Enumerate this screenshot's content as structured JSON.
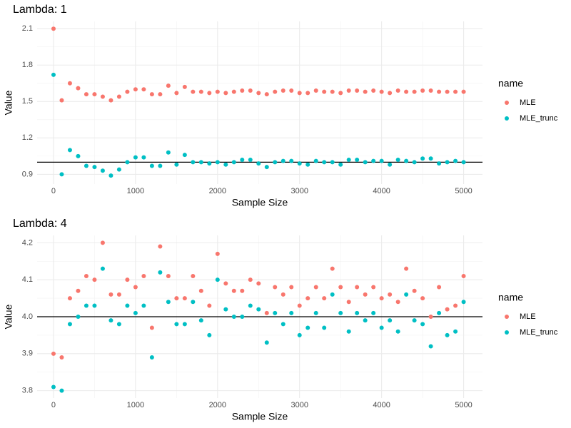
{
  "chart_data": [
    {
      "type": "scatter",
      "title": "Lambda:  1",
      "x_label": "Sample Size",
      "y_label": "Value",
      "legend_title": "name",
      "x": [
        0,
        100,
        200,
        300,
        400,
        500,
        600,
        700,
        800,
        900,
        1000,
        1100,
        1200,
        1300,
        1400,
        1500,
        1600,
        1700,
        1800,
        1900,
        2000,
        2100,
        2200,
        2300,
        2400,
        2500,
        2600,
        2700,
        2800,
        2900,
        3000,
        3100,
        3200,
        3300,
        3400,
        3500,
        3600,
        3700,
        3800,
        3900,
        4000,
        4100,
        4200,
        4300,
        4400,
        4500,
        4600,
        4700,
        4800,
        4900,
        5000
      ],
      "series": [
        {
          "name": "MLE",
          "color": "#F8766D",
          "values": [
            2.1,
            1.51,
            1.65,
            1.61,
            1.56,
            1.56,
            1.54,
            1.51,
            1.54,
            1.58,
            1.6,
            1.6,
            1.56,
            1.56,
            1.63,
            1.57,
            1.62,
            1.58,
            1.58,
            1.57,
            1.58,
            1.57,
            1.58,
            1.59,
            1.59,
            1.57,
            1.56,
            1.58,
            1.59,
            1.59,
            1.57,
            1.57,
            1.59,
            1.58,
            1.58,
            1.57,
            1.59,
            1.59,
            1.58,
            1.59,
            1.58,
            1.57,
            1.59,
            1.58,
            1.58,
            1.59,
            1.59,
            1.58,
            1.58,
            1.58,
            1.58
          ]
        },
        {
          "name": "MLE_trunc",
          "color": "#00BFC4",
          "values": [
            1.72,
            0.9,
            1.1,
            1.05,
            0.97,
            0.96,
            0.93,
            0.89,
            0.94,
            1.0,
            1.04,
            1.04,
            0.97,
            0.97,
            1.08,
            0.98,
            1.06,
            1.0,
            1.0,
            0.99,
            1.0,
            0.98,
            1.0,
            1.02,
            1.02,
            0.99,
            0.96,
            1.0,
            1.01,
            1.01,
            0.99,
            0.98,
            1.01,
            1.0,
            1.0,
            0.98,
            1.02,
            1.02,
            1.0,
            1.01,
            1.01,
            0.98,
            1.02,
            1.01,
            1.0,
            1.03,
            1.03,
            0.99,
            1.0,
            1.01,
            1.0
          ]
        }
      ],
      "hline": 1,
      "xlim": [
        -200,
        5230
      ],
      "xticks": [
        0,
        1000,
        2000,
        3000,
        4000,
        5000
      ],
      "ylim": [
        0.82,
        2.16
      ],
      "yticks": [
        0.9,
        1.2,
        1.5,
        1.8,
        2.1
      ],
      "grid": true
    },
    {
      "type": "scatter",
      "title": "Lambda:  4",
      "x_label": "Sample Size",
      "y_label": "Value",
      "legend_title": "name",
      "x": [
        0,
        100,
        200,
        300,
        400,
        500,
        600,
        700,
        800,
        900,
        1000,
        1100,
        1200,
        1300,
        1400,
        1500,
        1600,
        1700,
        1800,
        1900,
        2000,
        2100,
        2200,
        2300,
        2400,
        2500,
        2600,
        2700,
        2800,
        2900,
        3000,
        3100,
        3200,
        3300,
        3400,
        3500,
        3600,
        3700,
        3800,
        3900,
        4000,
        4100,
        4200,
        4300,
        4400,
        4500,
        4600,
        4700,
        4800,
        4900,
        5000
      ],
      "series": [
        {
          "name": "MLE",
          "color": "#F8766D",
          "values": [
            3.9,
            3.89,
            4.05,
            4.07,
            4.11,
            4.1,
            4.2,
            4.06,
            4.06,
            4.1,
            4.08,
            4.11,
            3.97,
            4.19,
            4.11,
            4.05,
            4.05,
            4.11,
            4.07,
            4.03,
            4.17,
            4.09,
            4.07,
            4.07,
            4.1,
            4.09,
            4.01,
            4.08,
            4.06,
            4.08,
            4.03,
            4.05,
            4.08,
            4.05,
            4.13,
            4.08,
            4.04,
            4.08,
            4.06,
            4.08,
            4.05,
            4.06,
            4.04,
            4.13,
            4.07,
            4.05,
            4.0,
            4.08,
            4.02,
            4.03,
            4.11
          ]
        },
        {
          "name": "MLE_trunc",
          "color": "#00BFC4",
          "values": [
            3.81,
            3.8,
            3.98,
            4.0,
            4.03,
            4.03,
            4.13,
            3.99,
            3.98,
            4.03,
            4.01,
            4.03,
            3.89,
            4.12,
            4.04,
            3.98,
            3.98,
            4.04,
            3.99,
            3.95,
            4.1,
            4.02,
            4.0,
            4.0,
            4.03,
            4.02,
            3.93,
            4.01,
            3.98,
            4.01,
            3.95,
            3.97,
            4.01,
            3.97,
            4.06,
            4.01,
            3.96,
            4.01,
            3.99,
            4.01,
            3.97,
            3.99,
            3.96,
            4.06,
            3.99,
            3.98,
            3.92,
            4.01,
            3.95,
            3.96,
            4.04
          ]
        }
      ],
      "hline": 4,
      "xlim": [
        -200,
        5230
      ],
      "xticks": [
        0,
        1000,
        2000,
        3000,
        4000,
        5000
      ],
      "ylim": [
        3.78,
        4.22
      ],
      "yticks": [
        3.8,
        3.9,
        {
          "value": 4,
          "label": "4.0"
        },
        4.1,
        4.2
      ],
      "grid": true
    }
  ]
}
